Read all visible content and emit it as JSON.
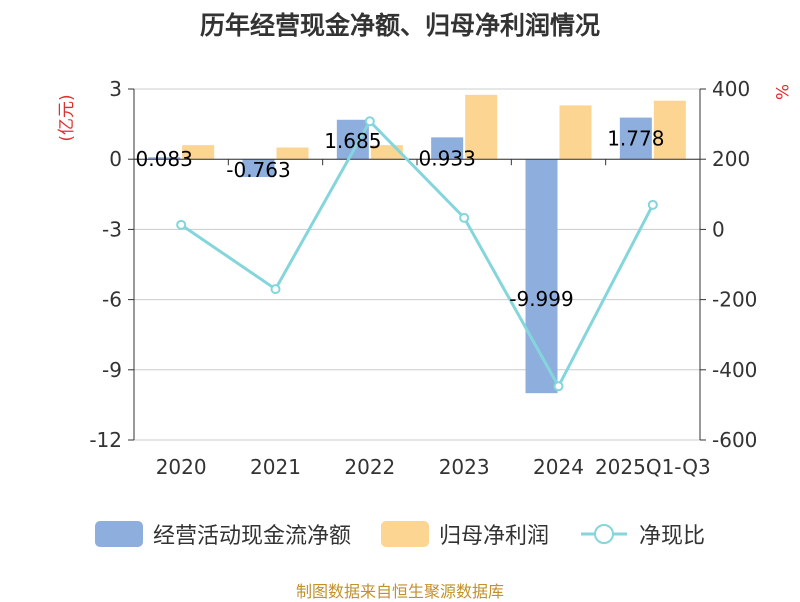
{
  "title": "历年经营现金净额、归母净利润情况",
  "source": "制图数据来自恒生聚源数据库",
  "colors": {
    "bar1": "#8eaedd",
    "bar2": "#fdd593",
    "line": "#84d6dc",
    "unit": "#e0302e",
    "source": "#c2912b",
    "grid": "#cccccc",
    "axis": "#333333"
  },
  "chart_data": {
    "type": "bar+line",
    "categories": [
      "2020",
      "2021",
      "2022",
      "2023",
      "2024",
      "2025Q1-Q3"
    ],
    "left_axis": {
      "unit": "(亿元)",
      "ylim": [
        -12,
        3
      ],
      "ticks": [
        "3",
        "0",
        "-3",
        "-6",
        "-9",
        "-12"
      ]
    },
    "right_axis": {
      "unit": "%",
      "ylim": [
        -600,
        400
      ],
      "ticks": [
        "400",
        "200",
        "0",
        "-200",
        "-400",
        "-600"
      ]
    },
    "grid": true,
    "legend_position": "bottom",
    "series": [
      {
        "name": "经营活动现金流净额",
        "type": "bar",
        "axis": "left",
        "values": [
          0.083,
          -0.763,
          1.685,
          0.933,
          -9.999,
          1.778
        ],
        "labels": [
          "0.083",
          "-0.763",
          "1.685",
          "0.933",
          "-9.999",
          "1.778"
        ]
      },
      {
        "name": "归母净利润",
        "type": "bar",
        "axis": "left",
        "values": [
          0.6,
          0.5,
          0.6,
          2.75,
          2.3,
          2.5
        ]
      },
      {
        "name": "净现比",
        "type": "line",
        "axis": "right",
        "values": [
          13,
          -170,
          308,
          33,
          -447,
          70
        ]
      }
    ]
  }
}
